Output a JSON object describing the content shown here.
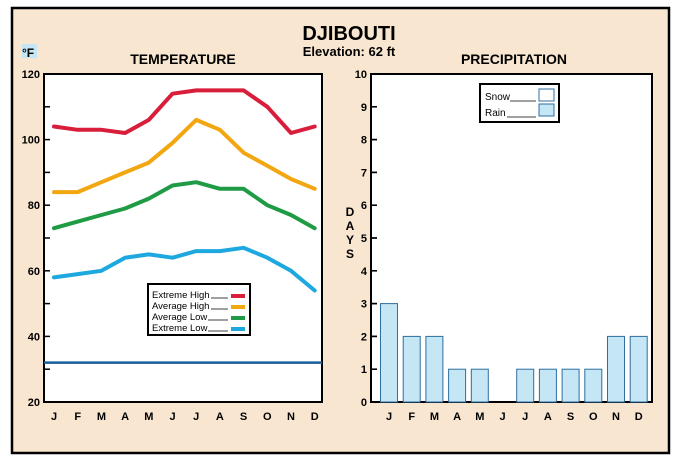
{
  "station": {
    "name": "DJIBOUTI",
    "elevation": "Elevation: 62 ft"
  },
  "colors": {
    "background": "#f8e6d0",
    "panel": "#ffffff",
    "border": "#000000",
    "extreme_high": "#d81e3a",
    "average_high": "#f2a60f",
    "average_low": "#1f9a45",
    "extreme_low": "#1ea8e0",
    "freezing_line": "#1a5d9a",
    "bar_fill": "#c4e6f5",
    "bar_stroke": "#2e6f9f",
    "unit_box": "#c4e6f5"
  },
  "chart_data": [
    {
      "type": "line",
      "title": "TEMPERATURE",
      "ylabel": "°F",
      "categories": [
        "J",
        "F",
        "M",
        "A",
        "M",
        "J",
        "J",
        "A",
        "S",
        "O",
        "N",
        "D"
      ],
      "ylim": [
        20,
        120
      ],
      "yticks": [
        20,
        40,
        60,
        80,
        100,
        120
      ],
      "reference_line": {
        "y": 32
      },
      "legend_position": "bottom-center",
      "series": [
        {
          "name": "Extreme High",
          "color": "#d81e3a",
          "values": [
            104,
            103,
            103,
            102,
            106,
            114,
            115,
            115,
            115,
            110,
            102,
            104
          ]
        },
        {
          "name": "Average High",
          "color": "#f2a60f",
          "values": [
            84,
            84,
            87,
            90,
            93,
            99,
            106,
            103,
            96,
            92,
            88,
            85
          ]
        },
        {
          "name": "Average Low",
          "color": "#1f9a45",
          "values": [
            73,
            75,
            77,
            79,
            82,
            86,
            87,
            85,
            85,
            80,
            77,
            73
          ]
        },
        {
          "name": "Extreme Low",
          "color": "#1ea8e0",
          "values": [
            58,
            59,
            60,
            64,
            65,
            64,
            66,
            66,
            67,
            64,
            60,
            54
          ]
        }
      ]
    },
    {
      "type": "bar",
      "title": "PRECIPITATION",
      "ylabel": "DAYS",
      "categories": [
        "J",
        "F",
        "M",
        "A",
        "M",
        "J",
        "J",
        "A",
        "S",
        "O",
        "N",
        "D"
      ],
      "ylim": [
        0,
        10
      ],
      "yticks": [
        0,
        1,
        2,
        3,
        4,
        5,
        6,
        7,
        8,
        9,
        10
      ],
      "legend_position": "top-center",
      "series": [
        {
          "name": "Rain",
          "values": [
            3,
            2,
            2,
            1,
            1,
            0,
            1,
            1,
            1,
            1,
            2,
            2
          ]
        },
        {
          "name": "Snow",
          "values": [
            0,
            0,
            0,
            0,
            0,
            0,
            0,
            0,
            0,
            0,
            0,
            0
          ]
        }
      ]
    }
  ]
}
